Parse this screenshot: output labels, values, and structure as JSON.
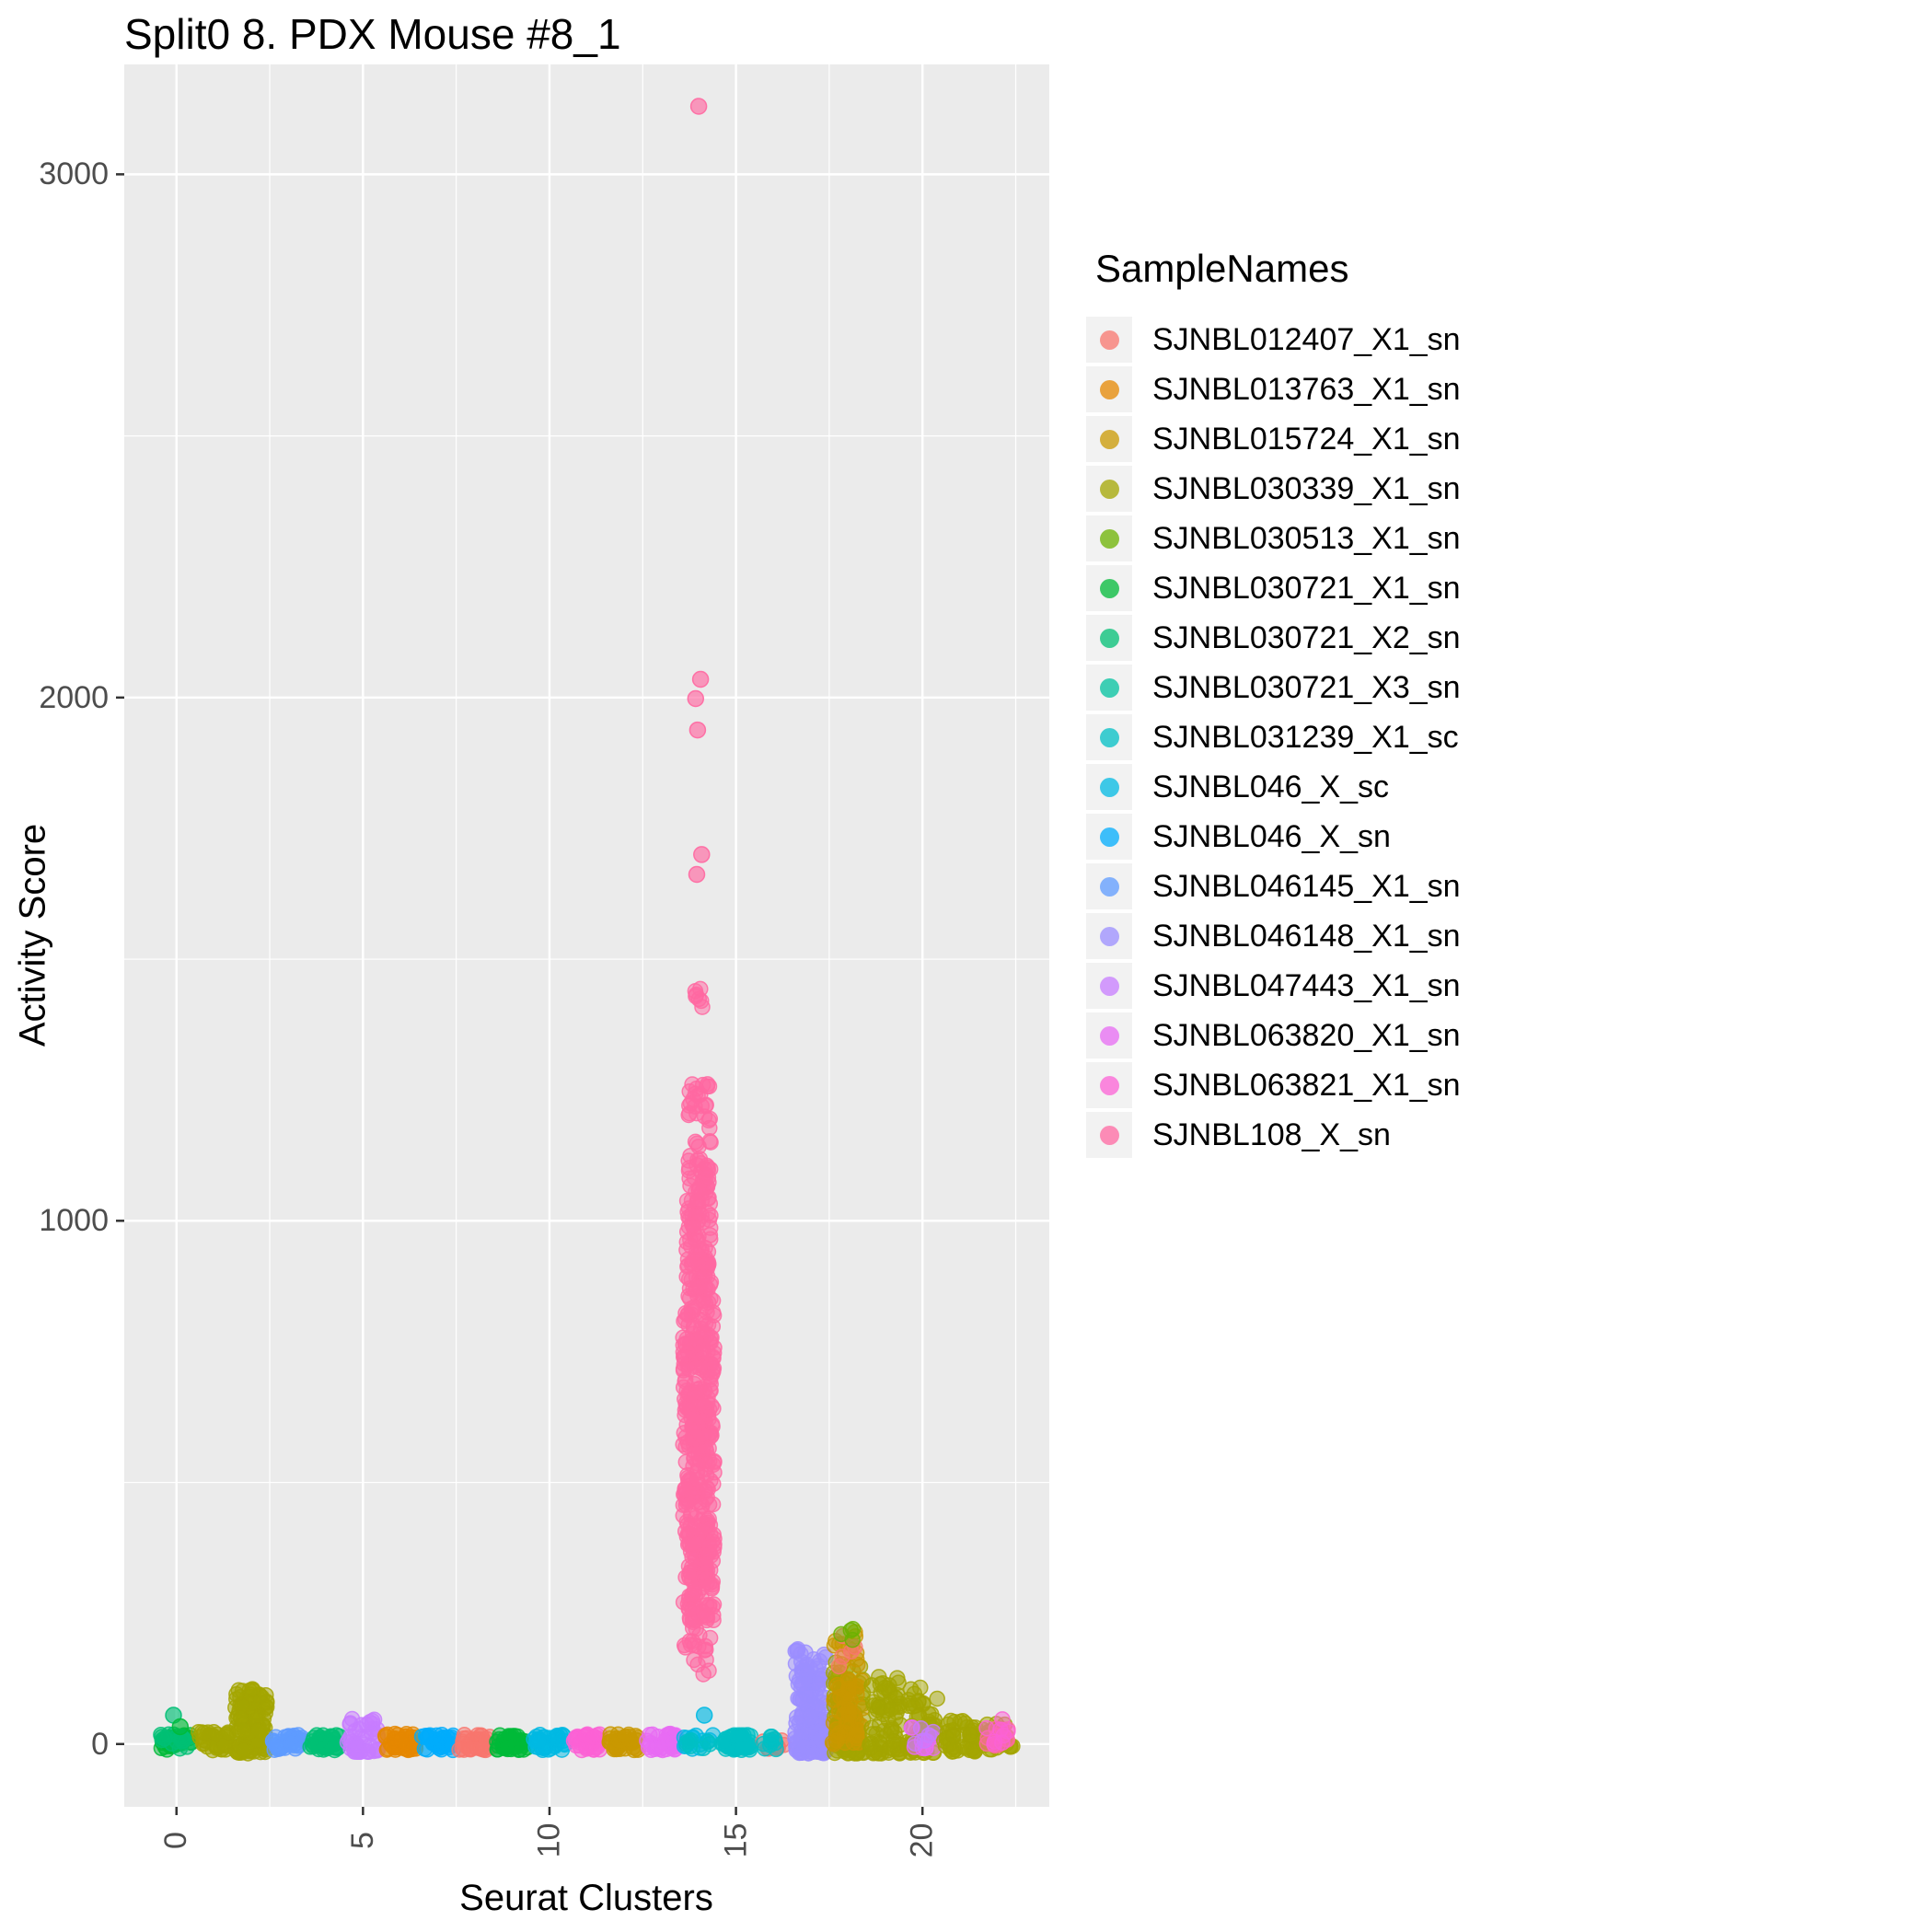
{
  "chart_data": {
    "type": "scatter",
    "title": "Split0 8. PDX Mouse #8_1",
    "xlabel": "Seurat Clusters",
    "ylabel": "Activity Score",
    "legend_title": "SampleNames",
    "legend_position": "right",
    "panel_color": "#EBEBEB",
    "grid_color": "#FFFFFF",
    "tick_color": "#333333",
    "tick_label_color": "#4D4D4D",
    "xlim": [
      -1.4,
      23.4
    ],
    "ylim": [
      -120,
      3210
    ],
    "x_ticks": [
      0,
      5,
      10,
      15,
      20
    ],
    "y_ticks": [
      0,
      1000,
      2000,
      3000
    ],
    "x_minor": [
      2.5,
      7.5,
      12.5,
      17.5,
      22.5
    ],
    "y_minor": [
      500,
      1500,
      2500
    ],
    "samples": [
      {
        "name": "SJNBL012407_X1_sn",
        "color": "#F8766D"
      },
      {
        "name": "SJNBL013763_X1_sn",
        "color": "#E58700"
      },
      {
        "name": "SJNBL015724_X1_sn",
        "color": "#C99800"
      },
      {
        "name": "SJNBL030339_X1_sn",
        "color": "#A3A500"
      },
      {
        "name": "SJNBL030513_X1_sn",
        "color": "#6BB100"
      },
      {
        "name": "SJNBL030721_X1_sn",
        "color": "#00BA38"
      },
      {
        "name": "SJNBL030721_X2_sn",
        "color": "#00BF74"
      },
      {
        "name": "SJNBL030721_X3_sn",
        "color": "#00C19F"
      },
      {
        "name": "SJNBL031239_X1_sc",
        "color": "#00BFC4"
      },
      {
        "name": "SJNBL046_X_sc",
        "color": "#00B9E3"
      },
      {
        "name": "SJNBL046_X_sn",
        "color": "#00ACFC"
      },
      {
        "name": "SJNBL046145_X1_sn",
        "color": "#5E9BFF"
      },
      {
        "name": "SJNBL046148_X1_sn",
        "color": "#9B8EFF"
      },
      {
        "name": "SJNBL047443_X1_sn",
        "color": "#C77CFF"
      },
      {
        "name": "SJNBL063820_X1_sn",
        "color": "#E76BF3"
      },
      {
        "name": "SJNBL063821_X1_sn",
        "color": "#FC61D5"
      },
      {
        "name": "SJNBL108_X_sn",
        "color": "#FF68A1"
      }
    ],
    "groups": [
      {
        "cluster": 0,
        "sample": "SJNBL030721_X1_sn",
        "n": 30,
        "y": [
          -12,
          18
        ]
      },
      {
        "cluster": 0,
        "sample": "SJNBL030721_X2_sn",
        "n": 18,
        "y": [
          -12,
          20
        ]
      },
      {
        "cluster": 1,
        "sample": "SJNBL030339_X1_sn",
        "n": 40,
        "y": [
          -12,
          25
        ],
        "skew": 1.4
      },
      {
        "cluster": 2,
        "sample": "SJNBL030339_X1_sn",
        "n": 130,
        "y": [
          -18,
          105
        ],
        "skew": 1.5
      },
      {
        "cluster": 3,
        "sample": "SJNBL046145_X1_sn",
        "n": 40,
        "y": [
          -12,
          18
        ]
      },
      {
        "cluster": 4,
        "sample": "SJNBL030721_X2_sn",
        "n": 40,
        "y": [
          -12,
          18
        ]
      },
      {
        "cluster": 5,
        "sample": "SJNBL047443_X1_sn",
        "n": 45,
        "y": [
          -15,
          48
        ],
        "skew": 2.2
      },
      {
        "cluster": 6,
        "sample": "SJNBL013763_X1_sn",
        "n": 42,
        "y": [
          -12,
          20
        ]
      },
      {
        "cluster": 7,
        "sample": "SJNBL046_X_sn",
        "n": 36,
        "y": [
          -12,
          18
        ]
      },
      {
        "cluster": 8,
        "sample": "SJNBL012407_X1_sn",
        "n": 36,
        "y": [
          -12,
          18
        ]
      },
      {
        "cluster": 9,
        "sample": "SJNBL030721_X1_sn",
        "n": 40,
        "y": [
          -12,
          18
        ]
      },
      {
        "cluster": 10,
        "sample": "SJNBL046_X_sc",
        "n": 36,
        "y": [
          -12,
          18
        ]
      },
      {
        "cluster": 11,
        "sample": "SJNBL063821_X1_sn",
        "n": 40,
        "y": [
          -12,
          20
        ]
      },
      {
        "cluster": 12,
        "sample": "SJNBL015724_X1_sn",
        "n": 40,
        "y": [
          -12,
          20
        ]
      },
      {
        "cluster": 13,
        "sample": "SJNBL063820_X1_sn",
        "n": 40,
        "y": [
          -12,
          20
        ]
      },
      {
        "cluster": 14,
        "sample": "SJNBL046_X_sc",
        "n": 14,
        "y": [
          -10,
          18
        ]
      },
      {
        "cluster": 14,
        "sample": "SJNBL031239_X1_sc",
        "n": 8,
        "y": [
          -10,
          12
        ]
      },
      {
        "cluster": 14,
        "sample": "SJNBL108_X_sn",
        "n": 20,
        "y": [
          120,
          235
        ],
        "skew": 0.8
      },
      {
        "cluster": 14,
        "sample": "SJNBL108_X_sn",
        "n": 430,
        "y": [
          235,
          870
        ]
      },
      {
        "cluster": 14,
        "sample": "SJNBL108_X_sn",
        "n": 150,
        "y": [
          870,
          1265
        ],
        "skew": 1.25,
        "jw": 0.33
      },
      {
        "cluster": 14,
        "sample": "SJNBL108_X_sn",
        "n": 7,
        "y": [
          1405,
          1450
        ],
        "jw": 0.12
      },
      {
        "cluster": 15,
        "sample": "SJNBL031239_X1_sc",
        "n": 40,
        "y": [
          -12,
          18
        ]
      },
      {
        "cluster": 16,
        "sample": "SJNBL012407_X1_sn",
        "n": 10,
        "y": [
          -10,
          14
        ],
        "jw": 0.3
      },
      {
        "cluster": 16,
        "sample": "SJNBL031239_X1_sc",
        "n": 10,
        "y": [
          -10,
          14
        ],
        "jw": 0.3
      },
      {
        "cluster": 17,
        "sample": "SJNBL046148_X1_sn",
        "n": 160,
        "y": [
          -18,
          185
        ],
        "skew": 1.7
      },
      {
        "cluster": 18,
        "sample": "SJNBL030339_X1_sn",
        "n": 95,
        "y": [
          -18,
          165
        ],
        "skew": 1.9
      },
      {
        "cluster": 18,
        "sample": "SJNBL015724_X1_sn",
        "n": 60,
        "y": [
          0,
          232
        ],
        "skew": 1.9
      },
      {
        "cluster": 18,
        "sample": "SJNBL012407_X1_sn",
        "n": 5,
        "y": [
          140,
          215
        ],
        "jw": 0.25
      },
      {
        "cluster": 18,
        "sample": "SJNBL030513_X1_sn",
        "n": 4,
        "y": [
          160,
          220
        ],
        "jw": 0.25
      },
      {
        "cluster": 19,
        "sample": "SJNBL030339_X1_sn",
        "n": 75,
        "y": [
          -18,
          130
        ],
        "skew": 1.8
      },
      {
        "cluster": 20,
        "sample": "SJNBL030339_X1_sn",
        "n": 60,
        "y": [
          -18,
          112
        ],
        "skew": 1.8
      },
      {
        "cluster": 20,
        "sample": "SJNBL063820_X1_sn",
        "n": 10,
        "y": [
          -8,
          40
        ],
        "skew": 1.5,
        "jw": 0.3
      },
      {
        "cluster": 20,
        "sample": "SJNBL047443_X1_sn",
        "n": 5,
        "y": [
          0,
          30
        ],
        "jw": 0.3
      },
      {
        "cluster": 21,
        "sample": "SJNBL030339_X1_sn",
        "n": 45,
        "y": [
          -15,
          45
        ],
        "skew": 1.8
      },
      {
        "cluster": 22,
        "sample": "SJNBL030339_X1_sn",
        "n": 30,
        "y": [
          -12,
          40
        ],
        "skew": 1.5
      },
      {
        "cluster": 22,
        "sample": "SJNBL108_X_sn",
        "n": 10,
        "y": [
          -8,
          30
        ],
        "jw": 0.3
      },
      {
        "cluster": 22,
        "sample": "SJNBL063821_X1_sn",
        "n": 8,
        "y": [
          0,
          58
        ],
        "skew": 1.3,
        "jw": 0.3
      }
    ],
    "points": [
      {
        "cluster": 14,
        "sample": "SJNBL108_X_sn",
        "y": 3130
      },
      {
        "cluster": 14.05,
        "sample": "SJNBL108_X_sn",
        "y": 2035
      },
      {
        "cluster": 13.92,
        "sample": "SJNBL108_X_sn",
        "y": 1998
      },
      {
        "cluster": 13.97,
        "sample": "SJNBL108_X_sn",
        "y": 1938
      },
      {
        "cluster": 14.08,
        "sample": "SJNBL108_X_sn",
        "y": 1700
      },
      {
        "cluster": 13.95,
        "sample": "SJNBL108_X_sn",
        "y": 1662
      },
      {
        "cluster": 14.15,
        "sample": "SJNBL046_X_sc",
        "y": 55
      },
      {
        "cluster": -0.08,
        "sample": "SJNBL030721_X2_sn",
        "y": 55
      },
      {
        "cluster": 0.1,
        "sample": "SJNBL030721_X1_sn",
        "y": 33
      }
    ]
  }
}
